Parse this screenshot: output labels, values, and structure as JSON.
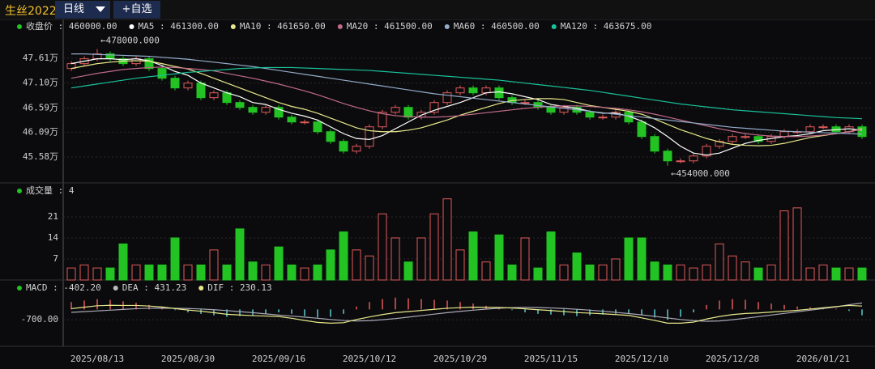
{
  "toolbar": {
    "symbol": "生丝2022",
    "period": "日线",
    "watch": "+自选"
  },
  "chart_data": [
    {
      "type": "candlestick",
      "legend": [
        {
          "value": 460000,
          "label": "收盘价 : 460000.00",
          "color": "#22c322"
        },
        {
          "value": 461300,
          "label": "MA5 : 461300.00",
          "color": "#ffffff"
        },
        {
          "value": 461650,
          "label": "MA10 : 461650.00",
          "color": "#e8e88a"
        },
        {
          "value": 461500,
          "label": "MA20 : 461500.00",
          "color": "#c06b8a"
        },
        {
          "value": 460500,
          "label": "MA60 : 460500.00",
          "color": "#93abc9"
        },
        {
          "value": 463675,
          "label": "MA120 : 463675.00",
          "color": "#19c39b"
        }
      ],
      "categories": [
        null,
        null,
        "2025/08/13",
        null,
        null,
        null,
        null,
        null,
        null,
        "2025/08/30",
        null,
        null,
        null,
        null,
        null,
        null,
        "2025/09/16",
        null,
        null,
        null,
        null,
        null,
        null,
        "2025/10/12",
        null,
        null,
        null,
        null,
        null,
        null,
        "2025/10/29",
        null,
        null,
        null,
        null,
        null,
        null,
        "2025/11/15",
        null,
        null,
        null,
        null,
        null,
        null,
        "2025/12/10",
        null,
        null,
        null,
        null,
        null,
        null,
        "2025/12/28",
        null,
        null,
        null,
        null,
        null,
        null,
        "2026/01/21",
        null,
        null,
        null
      ],
      "open": [
        474000,
        475000,
        476000,
        477000,
        476000,
        475000,
        476000,
        474000,
        472000,
        470000,
        471000,
        468000,
        469000,
        467000,
        466000,
        465000,
        466000,
        464000,
        463000,
        463000,
        461000,
        459000,
        457000,
        458000,
        462000,
        465000,
        466000,
        464000,
        465000,
        467000,
        469000,
        470000,
        469000,
        470000,
        468000,
        467000,
        467000,
        466000,
        465000,
        466000,
        465000,
        464000,
        464000,
        465000,
        463000,
        460000,
        457000,
        455000,
        455000,
        456000,
        458000,
        459000,
        460000,
        460000,
        459000,
        460000,
        461000,
        461000,
        462000,
        462000,
        461000,
        462000
      ],
      "close": [
        475000,
        476000,
        477000,
        476000,
        475000,
        476000,
        474000,
        472000,
        470000,
        471000,
        468000,
        469000,
        467000,
        466000,
        465000,
        466000,
        464000,
        463000,
        463000,
        461000,
        459000,
        457000,
        458000,
        462000,
        465000,
        466000,
        464000,
        465000,
        467000,
        469000,
        470000,
        469000,
        470000,
        468000,
        467000,
        467000,
        466000,
        465000,
        466000,
        465000,
        464000,
        464000,
        465000,
        463000,
        460000,
        457000,
        455000,
        455000,
        456000,
        458000,
        459000,
        460000,
        460000,
        459000,
        460000,
        461000,
        461000,
        462000,
        462000,
        461000,
        462000,
        460000
      ],
      "high": [
        475500,
        476500,
        478000,
        477500,
        476500,
        476500,
        476500,
        474500,
        472500,
        471500,
        471500,
        469500,
        469500,
        467500,
        466500,
        466500,
        466500,
        464500,
        463500,
        463500,
        461500,
        459500,
        458500,
        462500,
        465500,
        466500,
        466500,
        465500,
        467500,
        469500,
        470500,
        470500,
        470500,
        470500,
        468500,
        467500,
        467500,
        466500,
        466500,
        466500,
        465500,
        464500,
        465500,
        465500,
        463500,
        460500,
        457500,
        455500,
        456500,
        458500,
        459500,
        460500,
        460500,
        460500,
        460500,
        461500,
        461500,
        462500,
        462500,
        462500,
        462500,
        462500
      ],
      "low": [
        473500,
        474500,
        475500,
        475500,
        474500,
        474500,
        473500,
        471500,
        469500,
        469500,
        467500,
        467500,
        466500,
        465500,
        464500,
        464500,
        463500,
        462500,
        462500,
        460500,
        458500,
        456500,
        456500,
        457500,
        461500,
        464500,
        463500,
        463500,
        464500,
        466500,
        468500,
        468500,
        468500,
        467500,
        466500,
        466500,
        465500,
        464500,
        464500,
        464500,
        463500,
        463500,
        463500,
        462500,
        459500,
        456500,
        454000,
        454500,
        454500,
        455500,
        457500,
        458500,
        459500,
        458500,
        458500,
        459500,
        460500,
        460500,
        461500,
        460500,
        460500,
        459500
      ],
      "series": [
        {
          "name": "MA5",
          "color": "#ffffff",
          "values": [
            475000,
            475500,
            476000,
            476000,
            475800,
            476000,
            475600,
            474600,
            473400,
            472600,
            471000,
            470000,
            469000,
            468200,
            467000,
            466600,
            465600,
            464800,
            464200,
            463400,
            462000,
            460600,
            459600,
            459400,
            460200,
            461600,
            463000,
            464400,
            465400,
            466200,
            467000,
            468000,
            469000,
            469200,
            468800,
            468200,
            467600,
            466600,
            466200,
            465800,
            465200,
            464800,
            464800,
            464200,
            463200,
            461800,
            460000,
            458000,
            456600,
            456200,
            456600,
            457600,
            458600,
            459200,
            459600,
            460000,
            460200,
            460600,
            461200,
            461400,
            461600,
            461300
          ]
        },
        {
          "name": "MA10",
          "color": "#e8e88a",
          "values": [
            474000,
            474500,
            475000,
            475300,
            475500,
            475600,
            475500,
            475000,
            474400,
            473900,
            473000,
            472000,
            471000,
            470000,
            469000,
            468000,
            467000,
            466200,
            465600,
            464800,
            463800,
            462800,
            461800,
            461200,
            461000,
            461000,
            461300,
            461800,
            462600,
            463400,
            464400,
            465200,
            466000,
            466800,
            467400,
            467600,
            467800,
            467800,
            467600,
            467000,
            466400,
            466000,
            465600,
            465200,
            464600,
            463600,
            462500,
            461400,
            460500,
            459600,
            458900,
            458400,
            458200,
            458100,
            458200,
            458600,
            459200,
            459800,
            460200,
            460600,
            461000,
            461650
          ]
        },
        {
          "name": "MA20",
          "color": "#c06b8a",
          "values": [
            472000,
            472500,
            473000,
            473400,
            473800,
            474000,
            474200,
            474300,
            474200,
            474000,
            473800,
            473500,
            473000,
            472500,
            472000,
            471400,
            470800,
            470100,
            469400,
            468600,
            467700,
            466800,
            466000,
            465300,
            464700,
            464300,
            464100,
            464000,
            464000,
            464100,
            464300,
            464600,
            464900,
            465200,
            465500,
            465800,
            466000,
            466200,
            466300,
            466300,
            466200,
            466000,
            465800,
            465500,
            465100,
            464600,
            464000,
            463400,
            462800,
            462200,
            461600,
            461100,
            460600,
            460300,
            460100,
            460000,
            460000,
            460100,
            460300,
            460600,
            461000,
            461500
          ]
        },
        {
          "name": "MA60",
          "color": "#93abc9",
          "values": [
            477000,
            477000,
            476900,
            476800,
            476700,
            476600,
            476500,
            476300,
            476100,
            475900,
            475600,
            475300,
            475000,
            474700,
            474400,
            474000,
            473600,
            473200,
            472800,
            472400,
            472000,
            471600,
            471200,
            470800,
            470400,
            470000,
            469600,
            469200,
            468800,
            468500,
            468200,
            467900,
            467600,
            467300,
            467000,
            466700,
            466400,
            466100,
            465800,
            465500,
            465200,
            464900,
            464600,
            464300,
            464000,
            463700,
            463400,
            463100,
            462800,
            462500,
            462200,
            461900,
            461700,
            461500,
            461300,
            461100,
            461000,
            460900,
            460800,
            460700,
            460600,
            460500
          ]
        },
        {
          "name": "MA120",
          "color": "#19c39b",
          "values": [
            470000,
            470400,
            470800,
            471200,
            471600,
            472000,
            472300,
            472600,
            472900,
            473200,
            473400,
            473600,
            473800,
            474000,
            474100,
            474200,
            474200,
            474200,
            474100,
            474000,
            473900,
            473800,
            473700,
            473600,
            473400,
            473200,
            473000,
            472800,
            472600,
            472400,
            472200,
            472000,
            471800,
            471600,
            471300,
            471000,
            470700,
            470400,
            470100,
            469800,
            469500,
            469100,
            468700,
            468300,
            467900,
            467500,
            467100,
            466700,
            466400,
            466100,
            465800,
            465500,
            465300,
            465100,
            464900,
            464700,
            464500,
            464300,
            464100,
            463900,
            463800,
            463675
          ]
        }
      ],
      "annotations": [
        {
          "value": 478000,
          "label": "←478000.000"
        },
        {
          "value": 454000,
          "label": "←454000.000"
        }
      ],
      "up_color": "#e05a5a",
      "down_color": "#22c322",
      "ylim": [
        450800,
        481100
      ],
      "yticks": [
        {
          "value": 455800,
          "label": "45.58万"
        },
        {
          "value": 460900,
          "label": "46.09万"
        },
        {
          "value": 465900,
          "label": "46.59万"
        },
        {
          "value": 471000,
          "label": "47.10万"
        },
        {
          "value": 476100,
          "label": "47.61万"
        }
      ],
      "grid": true
    },
    {
      "type": "bar",
      "legend": [
        {
          "value": 4,
          "label": "成交量 : 4",
          "color": "#22c322"
        }
      ],
      "values": [
        4,
        5,
        4,
        4,
        12,
        5,
        5,
        5,
        14,
        5,
        5,
        10,
        5,
        17,
        6,
        5,
        11,
        5,
        4,
        5,
        10,
        16,
        10,
        8,
        22,
        14,
        6,
        14,
        22,
        27,
        10,
        16,
        6,
        15,
        5,
        14,
        4,
        16,
        5,
        9,
        5,
        5,
        7,
        14,
        14,
        6,
        5,
        5,
        4,
        5,
        12,
        8,
        6,
        4,
        5,
        23,
        24,
        4,
        5,
        4,
        4,
        4
      ],
      "ylim": [
        0,
        28
      ],
      "yticks": [
        7,
        14,
        21
      ],
      "grid": true
    },
    {
      "type": "macd",
      "legend": [
        {
          "value": -402.2,
          "label": "MACD : -402.20",
          "color": "#22c322"
        },
        {
          "value": 431.23,
          "label": "DEA : 431.23",
          "color": "#bbbbbb"
        },
        {
          "value": 230.13,
          "label": "DIF : 230.13",
          "color": "#e8e88a"
        }
      ],
      "values": [
        500,
        600,
        700,
        650,
        550,
        450,
        300,
        150,
        -50,
        -200,
        -300,
        -400,
        -500,
        -450,
        -400,
        -300,
        -200,
        -300,
        -450,
        -550,
        -500,
        -300,
        200,
        500,
        700,
        800,
        750,
        700,
        650,
        600,
        500,
        400,
        250,
        100,
        -50,
        -200,
        -300,
        -350,
        -400,
        -450,
        -400,
        -350,
        -300,
        -250,
        -400,
        -550,
        -700,
        -500,
        -200,
        300,
        600,
        700,
        650,
        500,
        400,
        300,
        200,
        150,
        100,
        50,
        -100,
        -402.2
      ],
      "pos_color": "#e05a5a",
      "neg_color": "#5fc8d0",
      "series": [
        {
          "name": "DEA",
          "color": "#a9a9b8",
          "values": [
            -200,
            -150,
            -100,
            -50,
            0,
            50,
            80,
            90,
            80,
            60,
            30,
            -20,
            -80,
            -150,
            -220,
            -300,
            -380,
            -450,
            -520,
            -600,
            -680,
            -750,
            -780,
            -760,
            -700,
            -620,
            -520,
            -420,
            -320,
            -220,
            -130,
            -50,
            20,
            80,
            120,
            140,
            130,
            100,
            60,
            10,
            -50,
            -120,
            -200,
            -280,
            -370,
            -470,
            -580,
            -680,
            -760,
            -800,
            -780,
            -700,
            -600,
            -490,
            -380,
            -270,
            -160,
            -50,
            60,
            170,
            320,
            431.23
          ]
        },
        {
          "name": "DIF",
          "color": "#e8e88a",
          "values": [
            50,
            150,
            250,
            280,
            270,
            270,
            230,
            165,
            55,
            -40,
            -120,
            -220,
            -330,
            -375,
            -420,
            -450,
            -480,
            -600,
            -745,
            -875,
            -930,
            -900,
            -680,
            -510,
            -350,
            -220,
            -145,
            -70,
            5,
            80,
            120,
            150,
            145,
            130,
            95,
            40,
            -20,
            -75,
            -140,
            -215,
            -250,
            -295,
            -350,
            -405,
            -570,
            -745,
            -930,
            -930,
            -860,
            -650,
            -480,
            -350,
            -275,
            -240,
            -180,
            -120,
            -60,
            25,
            110,
            195,
            270,
            230.13
          ]
        }
      ],
      "ylim": [
        -2500,
        1500
      ],
      "yticks": [
        {
          "value": -700,
          "label": "-700.00"
        }
      ],
      "grid": true
    }
  ]
}
